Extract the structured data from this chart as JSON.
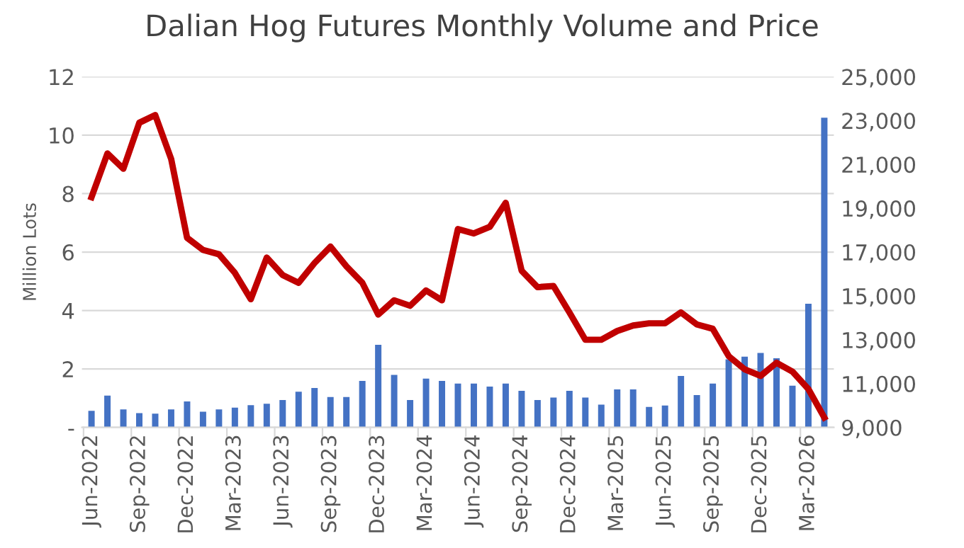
{
  "chart_data": {
    "type": "bar",
    "title": "Dalian Hog Futures Monthly Volume and Price",
    "ylabel": "Million Lots",
    "categories": [
      "Jun-2022",
      null,
      null,
      "Sep-2022",
      null,
      null,
      "Dec-2022",
      null,
      null,
      "Mar-2023",
      null,
      null,
      "Jun-2023",
      null,
      null,
      "Sep-2023",
      null,
      null,
      "Dec-2023",
      null,
      null,
      "Mar-2024",
      null,
      null,
      "Jun-2024",
      null,
      null,
      "Sep-2024",
      null,
      null,
      "Dec-2024",
      null,
      null,
      "Mar-2025",
      null,
      null,
      "Jun-2025",
      null,
      null,
      "Sep-2025",
      null,
      null,
      "Dec-2025",
      null,
      null,
      "Mar-2026",
      null
    ],
    "series": [
      {
        "color": "#4472c4",
        "values": [
          0.57,
          1.09,
          0.62,
          0.49,
          0.47,
          0.62,
          0.89,
          0.54,
          0.62,
          0.68,
          0.76,
          0.81,
          0.94,
          1.22,
          1.35,
          1.04,
          1.04,
          1.59,
          2.83,
          1.8,
          0.94,
          1.67,
          1.59,
          1.5,
          1.5,
          1.4,
          1.5,
          1.25,
          0.94,
          1.02,
          1.25,
          1.02,
          0.78,
          1.3,
          1.3,
          0.7,
          0.75,
          1.76,
          1.11,
          1.5,
          2.33,
          2.42,
          2.55,
          2.37,
          1.43,
          4.23,
          10.6
        ]
      },
      {
        "type": "line",
        "axis": "y2",
        "color": "#c00000",
        "values": [
          19500,
          21500,
          20800,
          22900,
          23250,
          21250,
          17650,
          17100,
          16900,
          16050,
          14850,
          16750,
          15950,
          15600,
          16500,
          17250,
          16350,
          15600,
          14150,
          14800,
          14550,
          15250,
          14800,
          18050,
          17850,
          18150,
          19250,
          16150,
          15400,
          15450,
          14250,
          13000,
          13000,
          13400,
          13650,
          13750,
          13750,
          14250,
          13700,
          13500,
          12250,
          11650,
          11350,
          11950,
          11550,
          10750,
          9450
        ]
      }
    ],
    "ylim": [
      0,
      12
    ],
    "yticks": [
      {
        "value": 0,
        "label": "-"
      },
      2,
      4,
      6,
      8,
      10,
      12
    ],
    "y2lim": [
      9000,
      25000
    ],
    "y2ticks": [
      {
        "value": 9000,
        "label": "9,000"
      },
      {
        "value": 11000,
        "label": "11,000"
      },
      {
        "value": 13000,
        "label": "13,000"
      },
      {
        "value": 15000,
        "label": "15,000"
      },
      {
        "value": 17000,
        "label": "17,000"
      },
      {
        "value": 19000,
        "label": "19,000"
      },
      {
        "value": 21000,
        "label": "21,000"
      },
      {
        "value": 23000,
        "label": "23,000"
      },
      {
        "value": 25000,
        "label": "25,000"
      }
    ],
    "grid": "y",
    "legend": false
  }
}
